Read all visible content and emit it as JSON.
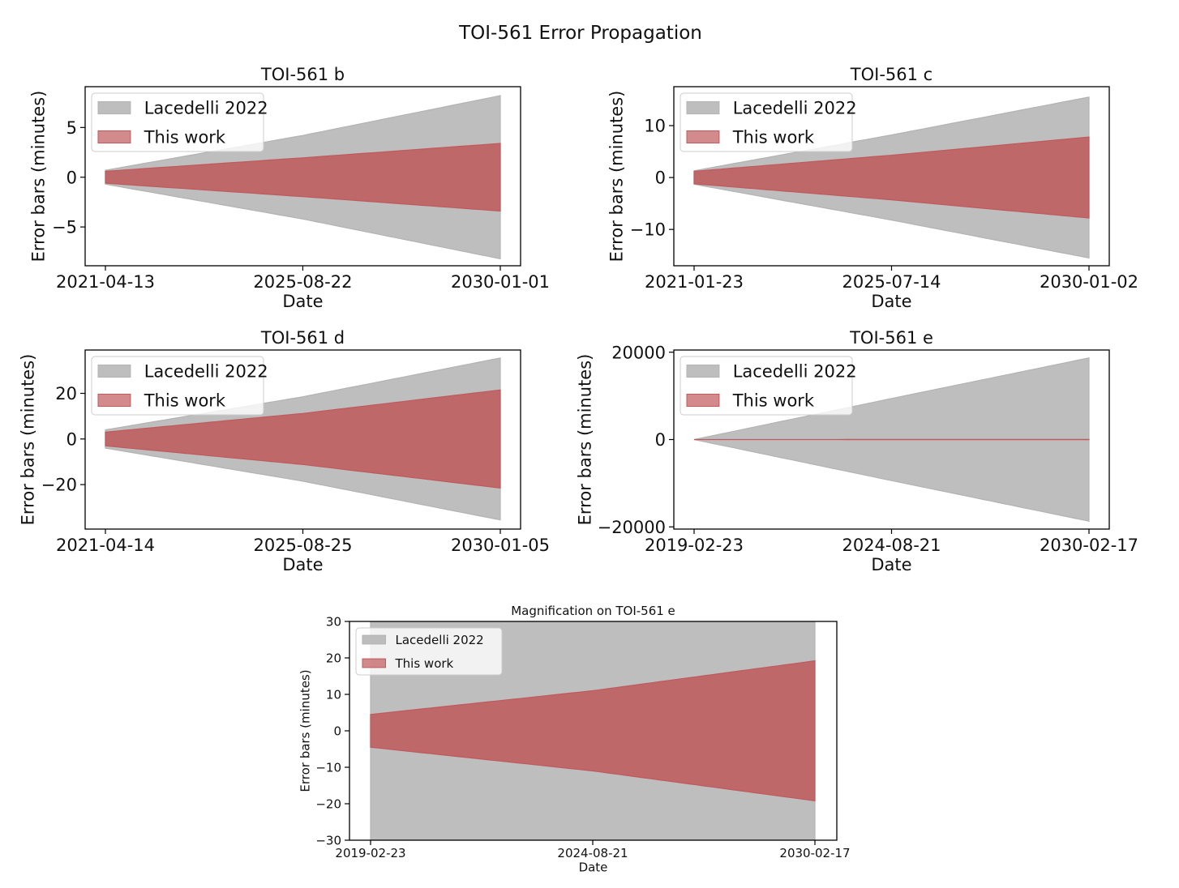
{
  "figure": {
    "suptitle": "TOI-561 Error Propagation"
  },
  "colors": {
    "lacedelli": "#b3b3b3",
    "this_work": "#c0595c",
    "axes": "#000000"
  },
  "chart_data": [
    {
      "type": "area",
      "title": "TOI-561 b",
      "xlabel": "Date",
      "ylabel": "Error bars (minutes)",
      "x_tick_labels": [
        "2021-04-13",
        "2025-08-22",
        "2030-01-01"
      ],
      "x": [
        "2021-04-13",
        "2025-08-22",
        "2030-01-01"
      ],
      "yticks": [
        -5,
        0,
        5
      ],
      "ylim": [
        -8.9,
        9.1
      ],
      "legend": {
        "placement": "upper-left",
        "entries": [
          "Lacedelli 2022",
          "This work"
        ]
      },
      "series": [
        {
          "name": "Lacedelli 2022",
          "lower": [
            -0.7,
            -4.2,
            -8.2
          ],
          "upper": [
            0.7,
            4.2,
            8.2
          ]
        },
        {
          "name": "This work",
          "lower": [
            -0.6,
            -1.95,
            -3.4
          ],
          "upper": [
            0.6,
            1.95,
            3.4
          ]
        }
      ]
    },
    {
      "type": "area",
      "title": "TOI-561 c",
      "xlabel": "Date",
      "ylabel": "Error bars (minutes)",
      "x_tick_labels": [
        "2021-01-23",
        "2025-07-14",
        "2030-01-02"
      ],
      "x": [
        "2021-01-23",
        "2025-07-14",
        "2030-01-02"
      ],
      "yticks": [
        -10,
        0,
        10
      ],
      "ylim": [
        -17,
        17.5
      ],
      "legend": {
        "placement": "upper-left",
        "entries": [
          "Lacedelli 2022",
          "This work"
        ]
      },
      "series": [
        {
          "name": "Lacedelli 2022",
          "lower": [
            -1.3,
            -8.2,
            -15.5
          ],
          "upper": [
            1.3,
            8.2,
            15.5
          ]
        },
        {
          "name": "This work",
          "lower": [
            -1.2,
            -4.3,
            -7.8
          ],
          "upper": [
            1.2,
            4.3,
            7.8
          ]
        }
      ]
    },
    {
      "type": "area",
      "title": "TOI-561 d",
      "xlabel": "Date",
      "ylabel": "Error bars (minutes)",
      "x_tick_labels": [
        "2021-04-14",
        "2025-08-25",
        "2030-01-05"
      ],
      "x": [
        "2021-04-14",
        "2025-08-25",
        "2030-01-05"
      ],
      "yticks": [
        -20,
        0,
        20
      ],
      "ylim": [
        -39.5,
        39
      ],
      "legend": {
        "placement": "upper-left",
        "entries": [
          "Lacedelli 2022",
          "This work"
        ]
      },
      "series": [
        {
          "name": "Lacedelli 2022",
          "lower": [
            -4,
            -18.5,
            -35.5
          ],
          "upper": [
            4,
            18.5,
            35.5
          ]
        },
        {
          "name": "This work",
          "lower": [
            -3,
            -11.2,
            -21.5
          ],
          "upper": [
            3,
            11.2,
            21.5
          ]
        }
      ]
    },
    {
      "type": "area",
      "title": "TOI-561 e",
      "xlabel": "Date",
      "ylabel": "Error bars (minutes)",
      "x_tick_labels": [
        "2019-02-23",
        "2024-08-21",
        "2030-02-17"
      ],
      "x": [
        "2019-02-23",
        "2024-08-21",
        "2030-02-17"
      ],
      "yticks": [
        -20000,
        0,
        20000
      ],
      "ylim": [
        -20500,
        20500
      ],
      "legend": {
        "placement": "upper-left",
        "entries": [
          "Lacedelli 2022",
          "This work"
        ]
      },
      "series": [
        {
          "name": "Lacedelli 2022",
          "lower": [
            0,
            -9400,
            -18700
          ],
          "upper": [
            0,
            9400,
            18700
          ]
        },
        {
          "name": "This work",
          "lower": [
            -4.5,
            -11,
            -19.2
          ],
          "upper": [
            4.5,
            11,
            19.2
          ]
        }
      ]
    },
    {
      "type": "area",
      "title": "Magnification on TOI-561 e",
      "xlabel": "Date",
      "ylabel": "Error bars (minutes)",
      "x_tick_labels": [
        "2019-02-23",
        "2024-08-21",
        "2030-02-17"
      ],
      "x": [
        "2019-02-23",
        "2024-08-21",
        "2030-02-17"
      ],
      "yticks": [
        -30,
        -20,
        -10,
        0,
        10,
        20,
        30
      ],
      "ylim": [
        -30,
        30
      ],
      "legend": {
        "placement": "upper-left",
        "entries": [
          "Lacedelli 2022",
          "This work"
        ]
      },
      "series": [
        {
          "name": "Lacedelli 2022",
          "lower": [
            -30,
            -30,
            -30
          ],
          "upper": [
            30,
            30,
            30
          ]
        },
        {
          "name": "This work",
          "lower": [
            -4.5,
            -11,
            -19.2
          ],
          "upper": [
            4.5,
            11,
            19.2
          ]
        }
      ]
    }
  ]
}
